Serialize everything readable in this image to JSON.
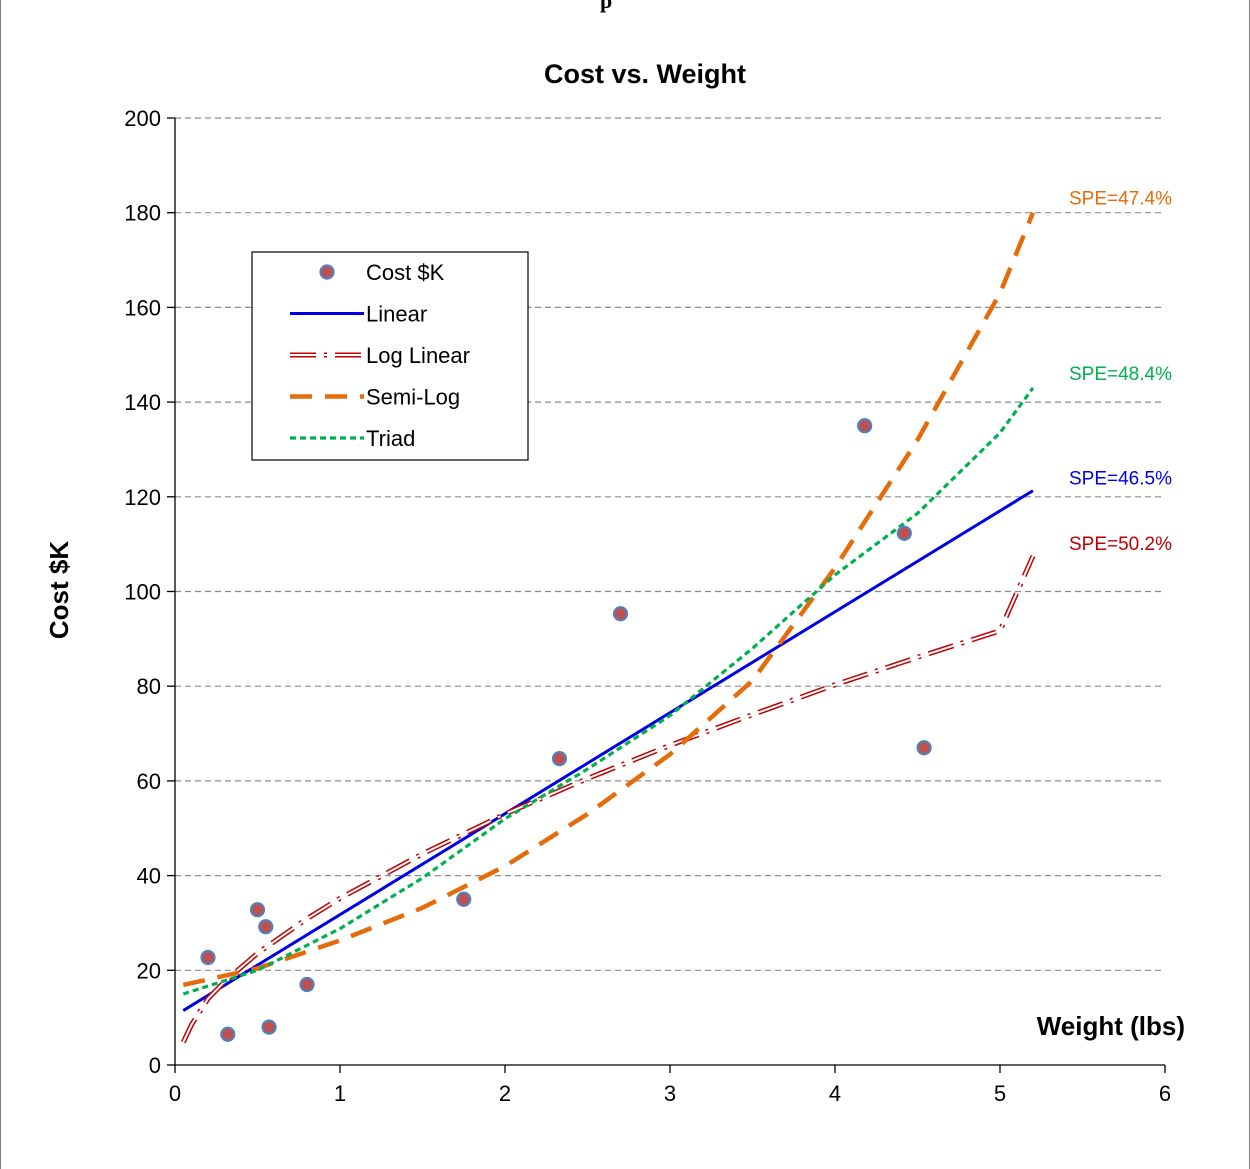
{
  "fragment_text": "p",
  "chart_data": {
    "type": "scatter",
    "title": "Cost vs. Weight",
    "xlabel": "Weight (lbs)",
    "ylabel": "Cost $K",
    "xlim": [
      0,
      6
    ],
    "ylim": [
      0,
      200
    ],
    "xticks": [
      0,
      1,
      2,
      3,
      4,
      5,
      6
    ],
    "yticks": [
      0,
      20,
      40,
      60,
      80,
      100,
      120,
      140,
      160,
      180,
      200
    ],
    "grid": "horizontal dashed",
    "legend_position": "upper-left",
    "points": {
      "name": "Cost $K",
      "color": "#c0504d",
      "x": [
        0.2,
        0.32,
        0.5,
        0.55,
        0.57,
        0.8,
        1.75,
        2.33,
        2.7,
        4.18,
        4.42,
        4.54
      ],
      "y": [
        22.7,
        6.5,
        32.8,
        29.2,
        8.0,
        17.0,
        35.0,
        64.7,
        95.3,
        135.0,
        112.3,
        67.0
      ]
    },
    "series": [
      {
        "name": "Linear",
        "style": "solid",
        "color": "#0000e6",
        "x": [
          0.05,
          5.2
        ],
        "y": [
          11.5,
          121.3
        ],
        "annotation": "SPE=46.5%",
        "annotation_color": "#0000e6"
      },
      {
        "name": "Log Linear",
        "style": "dash-dot-hollow",
        "color": "#c00000",
        "x": [
          0.05,
          0.1,
          0.2,
          0.3,
          0.5,
          0.8,
          1.0,
          1.5,
          2.0,
          2.5,
          3.0,
          3.5,
          4.0,
          4.5,
          5.0,
          5.2
        ],
        "y": [
          4.8,
          8.5,
          14.0,
          17.6,
          23.6,
          30.9,
          35.2,
          44.6,
          53.0,
          60.5,
          67.5,
          74.0,
          80.3,
          86.1,
          91.7,
          107.5
        ],
        "annotation": "SPE=50.2%",
        "annotation_color": "#c00000"
      },
      {
        "name": "Semi-Log",
        "style": "long-dash",
        "color": "#e46c0a",
        "x": [
          0.05,
          0.5,
          1.0,
          1.5,
          2.0,
          2.5,
          3.0,
          3.5,
          4.0,
          4.5,
          5.0,
          5.2
        ],
        "y": [
          16.9,
          20.4,
          26.3,
          33.2,
          42.0,
          53.0,
          65.6,
          81.2,
          105.0,
          132.0,
          163.0,
          180.0
        ],
        "annotation": "SPE=47.4%",
        "annotation_color": "#e46c0a"
      },
      {
        "name": "Triad",
        "style": "short-dash",
        "color": "#00b050",
        "x": [
          0.05,
          0.5,
          1.0,
          1.5,
          2.0,
          2.5,
          3.0,
          3.5,
          4.0,
          4.5,
          5.0,
          5.2
        ],
        "y": [
          15.0,
          20.0,
          28.8,
          39.5,
          52.0,
          62.5,
          73.8,
          88.0,
          103.5,
          116.5,
          133.5,
          143.0
        ],
        "annotation": "SPE=48.4%",
        "annotation_color": "#00b050"
      }
    ]
  }
}
